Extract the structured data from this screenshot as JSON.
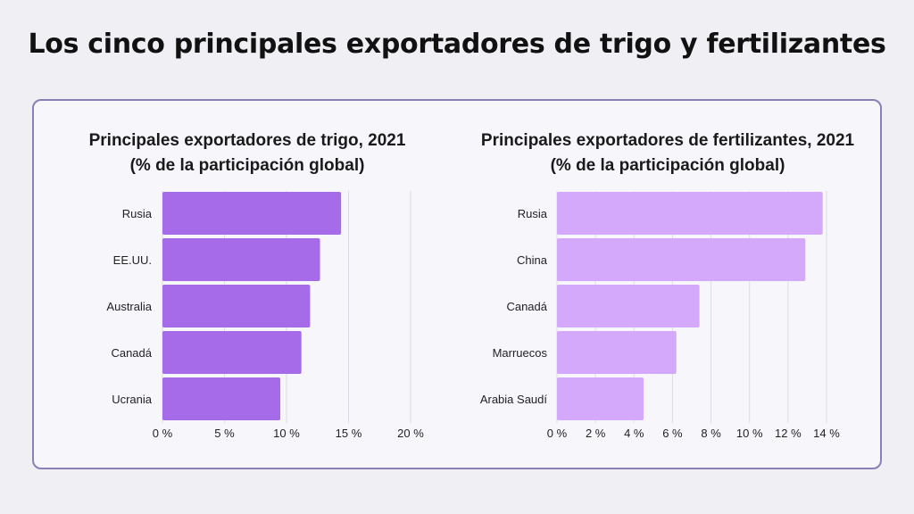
{
  "title": "Los cinco principales exportadores de trigo y fertilizantes",
  "chart_data": [
    {
      "type": "bar",
      "orientation": "horizontal",
      "title": [
        "Principales exportadores de trigo, 2021",
        "(% de la participación global)"
      ],
      "categories": [
        "Rusia",
        "EE.UU.",
        "Australia",
        "Canadá",
        "Ucrania"
      ],
      "values": [
        14.4,
        12.7,
        11.9,
        11.2,
        9.5
      ],
      "xlim": [
        0,
        20
      ],
      "xticks": [
        0,
        5,
        10,
        15,
        20
      ],
      "tick_labels": [
        "0 %",
        "5 %",
        "10 %",
        "15 %",
        "20 %"
      ],
      "color": "#a66be8",
      "grid": true
    },
    {
      "type": "bar",
      "orientation": "horizontal",
      "title": [
        "Principales exportadores de fertilizantes, 2021",
        "(% de la participación global)"
      ],
      "categories": [
        "Rusia",
        "China",
        "Canadá",
        "Marruecos",
        "Arabia Saudí"
      ],
      "values": [
        13.8,
        12.9,
        7.4,
        6.2,
        4.5
      ],
      "xlim": [
        0,
        14
      ],
      "xticks": [
        0,
        2,
        4,
        6,
        8,
        10,
        12,
        14
      ],
      "tick_labels": [
        "0 %",
        "2 %",
        "4 %",
        "6 %",
        "8 %",
        "10 %",
        "12 %",
        "14 %"
      ],
      "color": "#d4a8fb",
      "grid": true
    }
  ]
}
